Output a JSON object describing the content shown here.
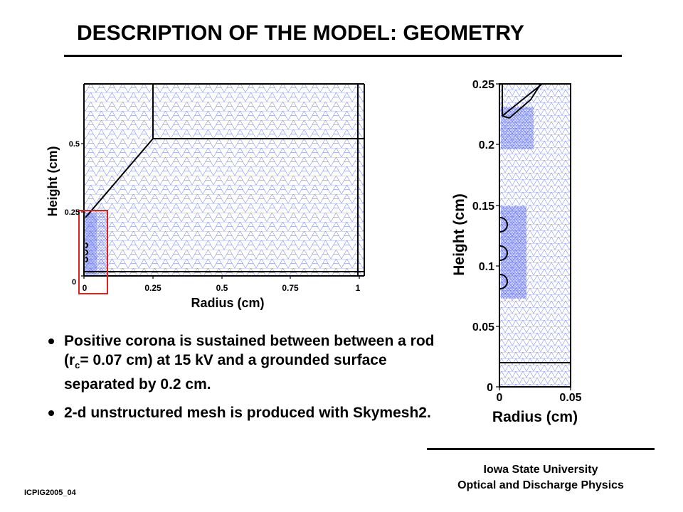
{
  "slide": {
    "title": "DESCRIPTION OF THE MODEL: GEOMETRY",
    "footer": {
      "line1": "Iowa State University",
      "line2": "Optical and Discharge Physics"
    },
    "code": "ICPIG2005_04"
  },
  "bullets": [
    {
      "parts": [
        "Positive corona is sustained between between a rod (r",
        "c",
        "= 0.07 cm) at 15 kV and a grounded surface  separated by 0.2 cm."
      ]
    },
    {
      "text": "2-d unstructured mesh is produced with Skymesh2."
    }
  ],
  "figures": {
    "left": {
      "ylabel": "Height (cm)",
      "xlabel": "Radius (cm)",
      "yticks": [
        "0",
        "0.25",
        "0.5"
      ],
      "xticks": [
        "0",
        "0.25",
        "0.5",
        "0.75",
        "1"
      ],
      "colors": {
        "mesh": "#5c6cf0",
        "outline": "#000000",
        "zoom_box": "#e0201a"
      }
    },
    "right": {
      "ylabel": "Height (cm)",
      "xlabel": "Radius (cm)",
      "yticks": [
        "0",
        "0.05",
        "0.1",
        "0.15",
        "0.2",
        "0.25"
      ],
      "xticks": [
        "0",
        "0.05"
      ]
    }
  }
}
